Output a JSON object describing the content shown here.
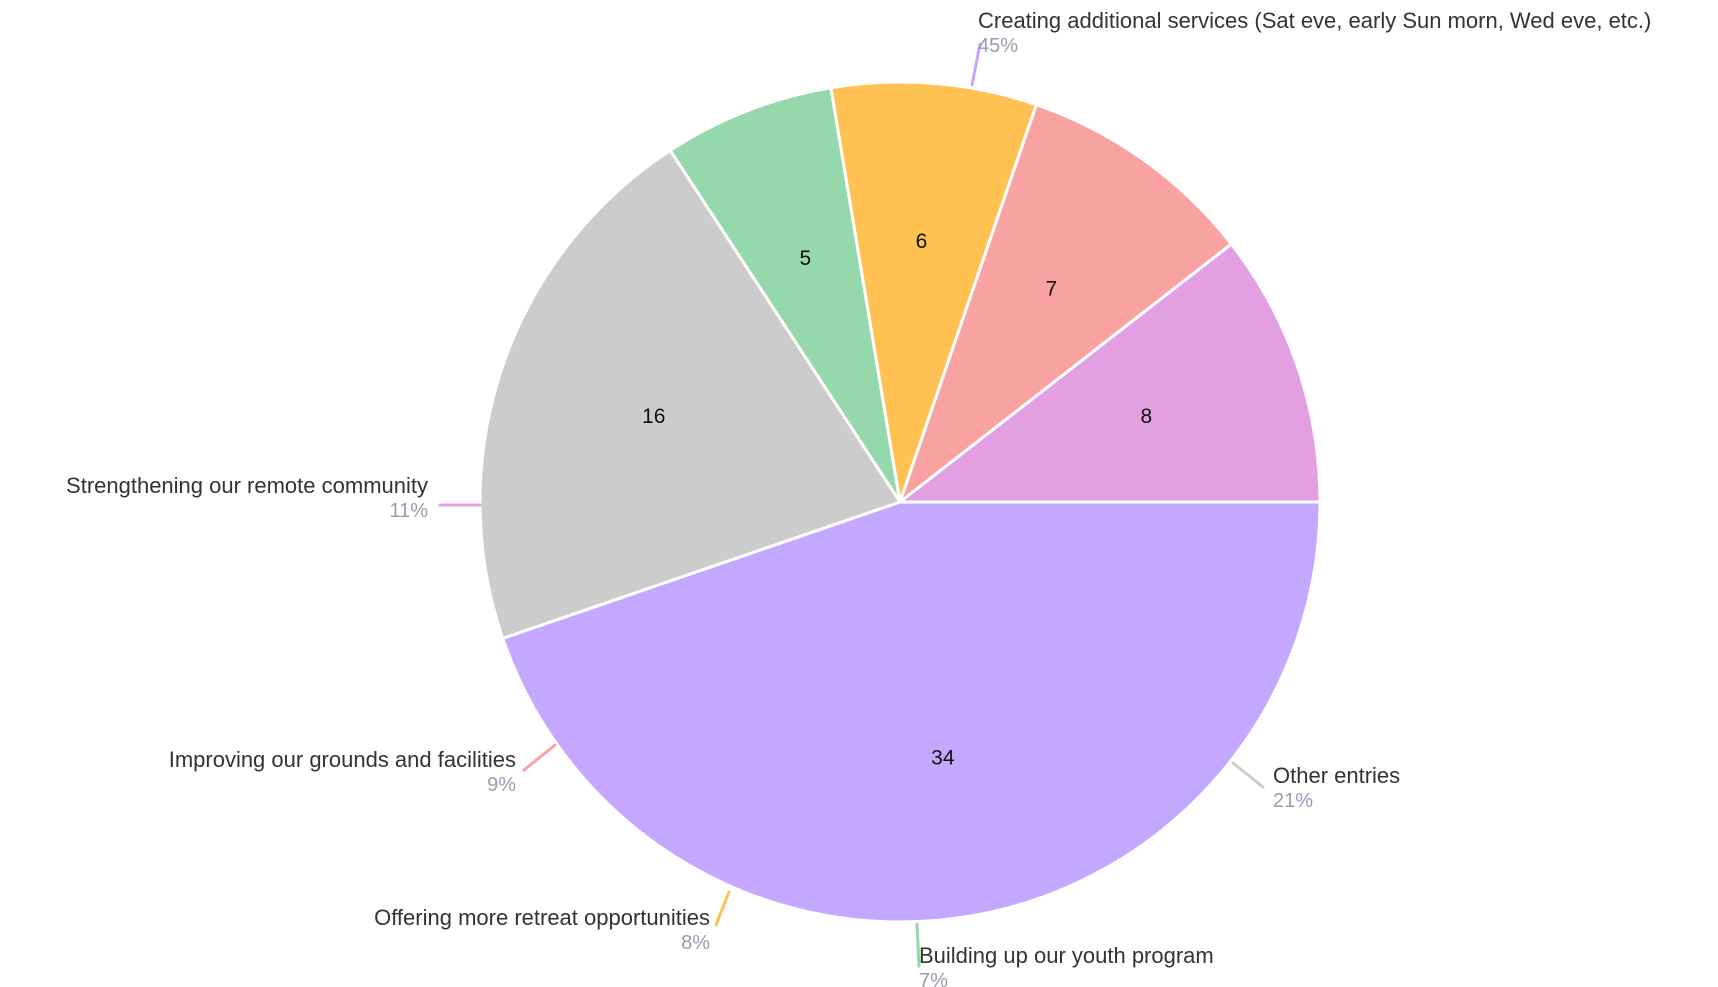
{
  "chart_data": {
    "type": "pie",
    "categories": [
      "Creating additional services (Sat eve, early Sun morn, Wed eve, etc.)",
      "Other entries",
      "Building up our youth program",
      "Offering more retreat opportunities",
      "Improving our grounds and facilities",
      "Strengthening our remote community"
    ],
    "values": [
      34,
      16,
      5,
      6,
      7,
      8
    ],
    "value_labels": [
      "34",
      "16",
      "5",
      "6",
      "7",
      "8"
    ],
    "percentages": [
      "45%",
      "21%",
      "7%",
      "8%",
      "9%",
      "11%"
    ],
    "colors": [
      "#c4a8ff",
      "#cccccc",
      "#94d8ab",
      "#ffc152",
      "#f9a2a2",
      "#e2a0e2"
    ],
    "slice_border_color": "#ffffff",
    "percent_text_color": "#9a9ab0",
    "start_position": "3 o'clock, clockwise",
    "legend": "none (labels placed outside slices with leader lines)"
  }
}
